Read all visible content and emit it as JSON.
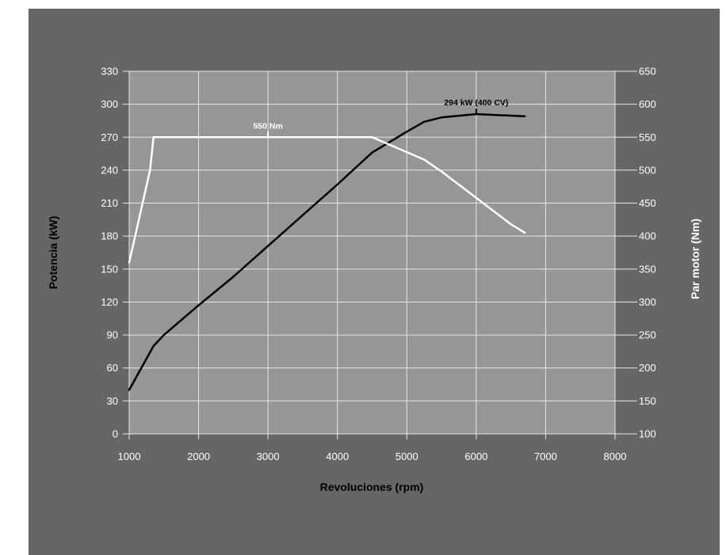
{
  "chart_data": {
    "type": "line",
    "xlabel": "Revoluciones (rpm)",
    "ylabel_left": "Potencia (kW)",
    "ylabel_right": "Par motor (Nm)",
    "x_ticks": [
      1000,
      2000,
      3000,
      4000,
      5000,
      6000,
      7000,
      8000
    ],
    "xlim": [
      1000,
      8000
    ],
    "y_left_ticks": [
      0,
      30,
      60,
      90,
      120,
      150,
      180,
      210,
      240,
      270,
      300,
      330
    ],
    "ylim_left": [
      0,
      330
    ],
    "y_right_ticks": [
      100,
      150,
      200,
      250,
      300,
      350,
      400,
      450,
      500,
      550,
      600,
      650
    ],
    "ylim_right": [
      100,
      650
    ],
    "grid": true,
    "series": [
      {
        "axis": "left",
        "color": "#000000",
        "points": [
          [
            1000,
            40
          ],
          [
            1350,
            80
          ],
          [
            1500,
            90
          ],
          [
            2000,
            117
          ],
          [
            2500,
            143
          ],
          [
            3000,
            171
          ],
          [
            3500,
            199
          ],
          [
            4000,
            227
          ],
          [
            4500,
            256
          ],
          [
            5000,
            275
          ],
          [
            5250,
            284
          ],
          [
            5500,
            288
          ],
          [
            6000,
            291
          ],
          [
            6700,
            289
          ]
        ]
      },
      {
        "axis": "right",
        "color": "#ffffff",
        "points": [
          [
            1000,
            360
          ],
          [
            1300,
            500
          ],
          [
            1350,
            550
          ],
          [
            4500,
            550
          ],
          [
            5250,
            516
          ],
          [
            5500,
            498
          ],
          [
            6000,
            458
          ],
          [
            6500,
            418
          ],
          [
            6700,
            405
          ]
        ]
      }
    ],
    "annotations": [
      {
        "text": "550 Nm",
        "x": 3000,
        "axis": "right",
        "y": 550,
        "color": "#ffffff"
      },
      {
        "text": "294 kW (400 CV)",
        "x": 6000,
        "axis": "left",
        "y": 291,
        "color": "#000000"
      }
    ],
    "colors": {
      "background": "#666669",
      "plot_area": "#969698",
      "grid": "#e6e6e6",
      "text": "#ffffff",
      "axis_title": "#000000"
    }
  }
}
